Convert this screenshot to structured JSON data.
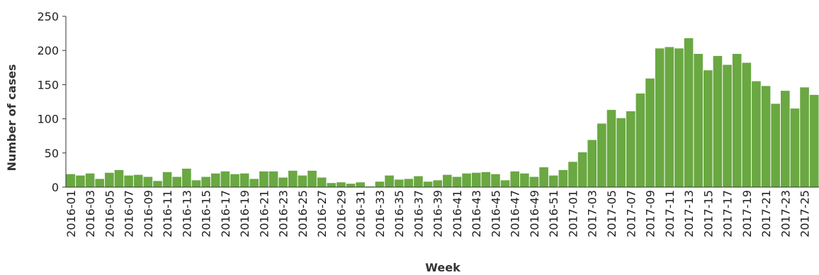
{
  "chart_data": {
    "type": "bar",
    "xlabel": "Week",
    "ylabel": "Number of cases",
    "ylim": [
      0,
      250
    ],
    "yticks": [
      0,
      50,
      100,
      150,
      200,
      250
    ],
    "grid": false,
    "legend": "none",
    "bar_color": "#6aa842",
    "categories": [
      "2016-01",
      "2016-02",
      "2016-03",
      "2016-04",
      "2016-05",
      "2016-06",
      "2016-07",
      "2016-08",
      "2016-09",
      "2016-10",
      "2016-11",
      "2016-12",
      "2016-13",
      "2016-14",
      "2016-15",
      "2016-16",
      "2016-17",
      "2016-18",
      "2016-19",
      "2016-20",
      "2016-21",
      "2016-22",
      "2016-23",
      "2016-24",
      "2016-25",
      "2016-26",
      "2016-27",
      "2016-28",
      "2016-29",
      "2016-30",
      "2016-31",
      "2016-32",
      "2016-33",
      "2016-34",
      "2016-35",
      "2016-36",
      "2016-37",
      "2016-38",
      "2016-39",
      "2016-40",
      "2016-41",
      "2016-42",
      "2016-43",
      "2016-44",
      "2016-45",
      "2016-46",
      "2016-47",
      "2016-48",
      "2016-49",
      "2016-50",
      "2016-51",
      "2016-52",
      "2017-01",
      "2017-02",
      "2017-03",
      "2017-04",
      "2017-05",
      "2017-06",
      "2017-07",
      "2017-08",
      "2017-09",
      "2017-10",
      "2017-11",
      "2017-12",
      "2017-13",
      "2017-14",
      "2017-15",
      "2017-16",
      "2017-17",
      "2017-18",
      "2017-19",
      "2017-20",
      "2017-21",
      "2017-22",
      "2017-23",
      "2017-24",
      "2017-25",
      "2017-26"
    ],
    "labeled_categories": [
      "2016-01",
      "2016-03",
      "2016-05",
      "2016-07",
      "2016-09",
      "2016-11",
      "2016-13",
      "2016-15",
      "2016-17",
      "2016-19",
      "2016-21",
      "2016-23",
      "2016-25",
      "2016-27",
      "2016-29",
      "2016-31",
      "2016-33",
      "2016-35",
      "2016-37",
      "2016-39",
      "2016-41",
      "2016-43",
      "2016-45",
      "2016-47",
      "2016-49",
      "2016-51",
      "2017-01",
      "2017-03",
      "2017-05",
      "2017-07",
      "2017-09",
      "2017-11",
      "2017-13",
      "2017-15",
      "2017-17",
      "2017-19",
      "2017-21",
      "2017-23",
      "2017-25"
    ],
    "values": [
      19,
      17,
      20,
      12,
      21,
      25,
      17,
      18,
      15,
      9,
      22,
      15,
      27,
      10,
      15,
      20,
      23,
      19,
      20,
      12,
      23,
      23,
      14,
      24,
      17,
      24,
      14,
      6,
      7,
      5,
      7,
      1,
      8,
      17,
      11,
      12,
      16,
      8,
      10,
      18,
      15,
      20,
      21,
      22,
      19,
      10,
      23,
      20,
      15,
      29,
      17,
      25,
      37,
      51,
      69,
      93,
      113,
      101,
      111,
      137,
      159,
      203,
      205,
      203,
      218,
      195,
      171,
      192,
      179,
      195,
      182,
      155,
      148,
      122,
      141,
      115,
      146,
      135
    ]
  }
}
